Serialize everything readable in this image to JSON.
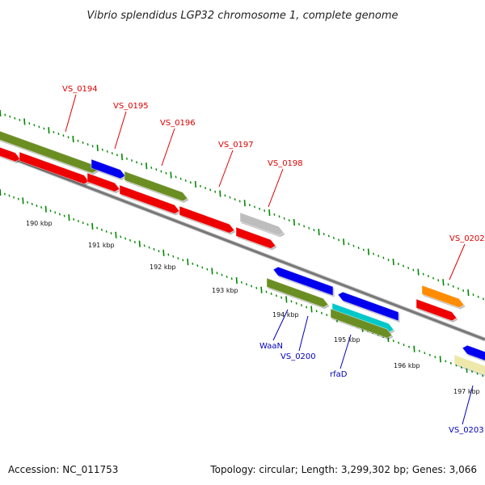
{
  "title": "Vibrio splendidus LGP32 chromosome 1, complete genome",
  "footer": {
    "accession": "Accession: NC_011753",
    "topology": "Topology: circular; Length: 3,299,302 bp; Genes: 3,066"
  },
  "colors": {
    "label_forward": "#dd0000",
    "label_reverse": "#0000bb",
    "backbone": "#777777",
    "tick": "#008800"
  },
  "kbp_labels": [
    "190 kbp",
    "191 kbp",
    "192 kbp",
    "193 kbp",
    "194 kbp",
    "195 kbp",
    "196 kbp",
    "197 kbp"
  ],
  "gene_labels": [
    {
      "name": "VS_0194",
      "strand": "forward"
    },
    {
      "name": "VS_0195",
      "strand": "forward"
    },
    {
      "name": "VS_0196",
      "strand": "forward"
    },
    {
      "name": "VS_0197",
      "strand": "forward"
    },
    {
      "name": "VS_0198",
      "strand": "forward"
    },
    {
      "name": "VS_0202",
      "strand": "forward"
    },
    {
      "name": "WaaN",
      "strand": "reverse"
    },
    {
      "name": "VS_0200",
      "strand": "reverse"
    },
    {
      "name": "rfaD",
      "strand": "reverse"
    },
    {
      "name": "VS_0203",
      "strand": "reverse"
    }
  ],
  "features": [
    {
      "id": "f-green-a",
      "color": "#6b8e23"
    },
    {
      "id": "f-red-a",
      "color": "#ee0000"
    },
    {
      "id": "f-red-b",
      "color": "#ee0000"
    },
    {
      "id": "f-blue-a",
      "color": "#0000ee"
    },
    {
      "id": "f-red-c",
      "color": "#ee0000"
    },
    {
      "id": "f-green-b",
      "color": "#6b8e23"
    },
    {
      "id": "f-red-d",
      "color": "#ee0000"
    },
    {
      "id": "f-red-e",
      "color": "#ee0000"
    },
    {
      "id": "f-grey-a",
      "color": "#bdbdbd"
    },
    {
      "id": "f-red-f",
      "color": "#ee0000"
    },
    {
      "id": "f-blue-b",
      "color": "#0000ee"
    },
    {
      "id": "f-green-c",
      "color": "#6b8e23"
    },
    {
      "id": "f-blue-c",
      "color": "#0000ee"
    },
    {
      "id": "f-cyan-a",
      "color": "#00c8c8"
    },
    {
      "id": "f-green-d",
      "color": "#6b8e23"
    },
    {
      "id": "f-orange-a",
      "color": "#ff8c00"
    },
    {
      "id": "f-red-g",
      "color": "#ee0000"
    },
    {
      "id": "f-blue-d",
      "color": "#0000ee"
    },
    {
      "id": "f-yellow-a",
      "color": "#eee8aa"
    }
  ]
}
